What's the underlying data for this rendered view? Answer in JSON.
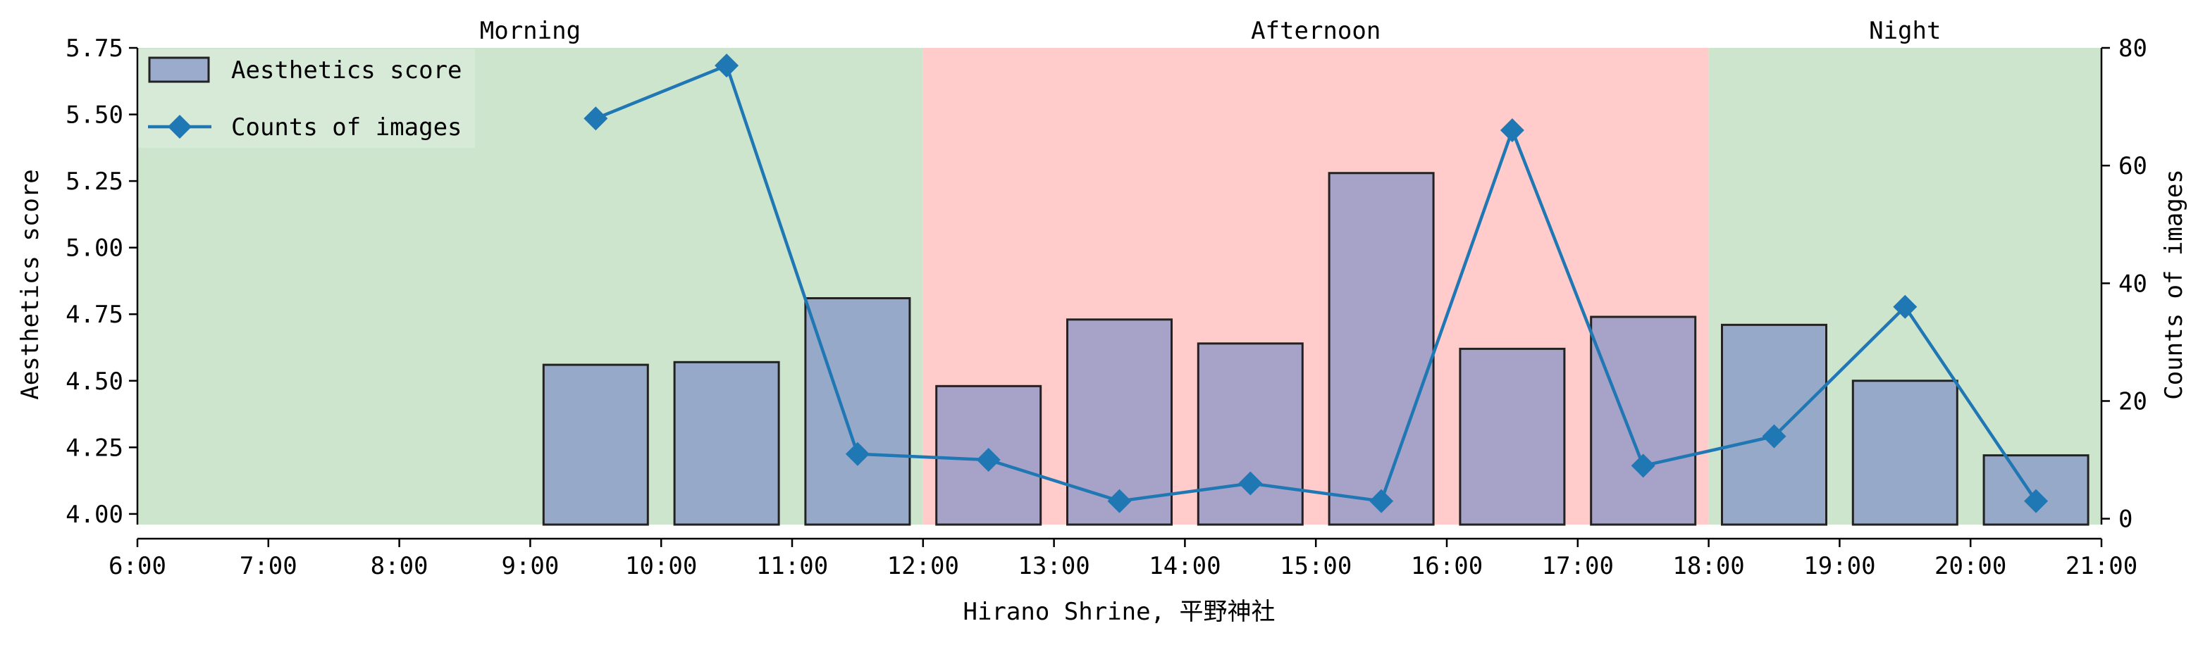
{
  "chart_data": {
    "type": "bar+line",
    "title": "",
    "xlabel": "Hirano Shrine, 平野神社",
    "ylabel_left": "Aesthetics score",
    "ylabel_right": "Counts of images",
    "x_ticks": [
      "6:00",
      "7:00",
      "8:00",
      "9:00",
      "10:00",
      "11:00",
      "12:00",
      "13:00",
      "14:00",
      "15:00",
      "16:00",
      "17:00",
      "18:00",
      "19:00",
      "20:00",
      "21:00"
    ],
    "ylim_left": [
      3.96,
      5.75
    ],
    "yticks_left": [
      "4.00",
      "4.25",
      "4.50",
      "4.75",
      "5.00",
      "5.25",
      "5.50",
      "5.75"
    ],
    "ylim_right": [
      -1,
      80
    ],
    "yticks_right": [
      "0",
      "20",
      "40",
      "60",
      "80"
    ],
    "periods": [
      {
        "label": "Morning",
        "start": 6,
        "end": 12,
        "color": "#cde5cd"
      },
      {
        "label": "Afternoon",
        "start": 12,
        "end": 18,
        "color": "#ffcccb"
      },
      {
        "label": "Night",
        "start": 18,
        "end": 21,
        "color": "#cde5cd"
      }
    ],
    "legend": {
      "placement": "top-left",
      "entries": [
        "Aesthetics score",
        "Counts of images"
      ]
    },
    "series": [
      {
        "name": "Aesthetics score",
        "kind": "bar",
        "color": "#8090c6",
        "x": [
          9.5,
          10.5,
          11.5,
          12.5,
          13.5,
          14.5,
          15.5,
          16.5,
          17.5,
          18.5,
          19.5,
          20.5
        ],
        "values": [
          4.56,
          4.57,
          4.81,
          4.48,
          4.73,
          4.64,
          5.28,
          4.62,
          4.74,
          4.71,
          4.5,
          4.22
        ]
      },
      {
        "name": "Counts of images",
        "kind": "line",
        "color": "#1f77b4",
        "marker": "diamond",
        "x": [
          9.5,
          10.5,
          11.5,
          12.5,
          13.5,
          14.5,
          15.5,
          16.5,
          17.5,
          18.5,
          19.5,
          20.5
        ],
        "values": [
          68,
          77,
          11,
          10,
          3,
          6,
          3,
          66,
          9,
          14,
          36,
          3
        ]
      }
    ]
  }
}
